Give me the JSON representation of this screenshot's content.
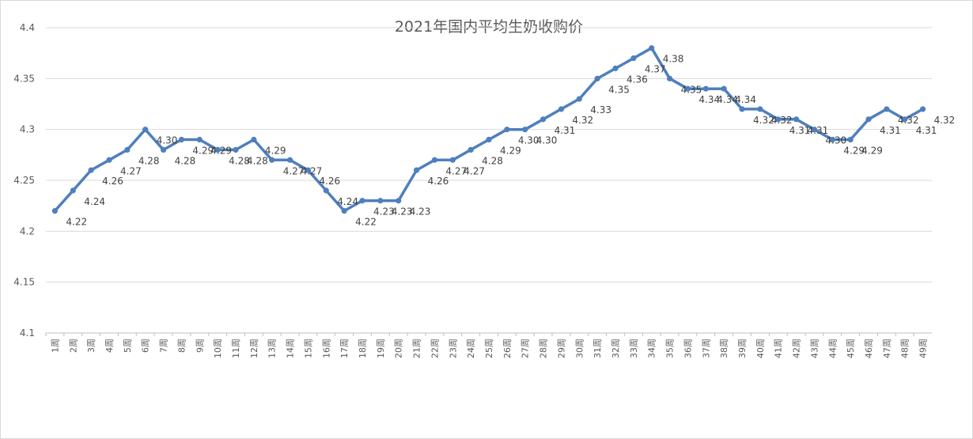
{
  "chart_data": {
    "type": "line",
    "title": "2021年国内平均生奶收购价",
    "xlabel": "",
    "ylabel": "",
    "ylim": [
      4.1,
      4.4
    ],
    "yticks": [
      "4.1",
      "4.15",
      "4.2",
      "4.25",
      "4.3",
      "4.35",
      "4.4"
    ],
    "grid": true,
    "legend": "none",
    "line_color": "#4f7fbd",
    "categories": [
      "1周",
      "2周",
      "3周",
      "4周",
      "5周",
      "6周",
      "7周",
      "8周",
      "9周",
      "10周",
      "11周",
      "12周",
      "13周",
      "14周",
      "15周",
      "16周",
      "17周",
      "18周",
      "19周",
      "20周",
      "21周",
      "22周",
      "23周",
      "24周",
      "25周",
      "26周",
      "27周",
      "28周",
      "29周",
      "30周",
      "31周",
      "32周",
      "33周",
      "34周",
      "35周",
      "36周",
      "37周",
      "38周",
      "39周",
      "40周",
      "41周",
      "42周",
      "43周",
      "44周",
      "45周",
      "46周",
      "47周",
      "48周",
      "49周"
    ],
    "values": [
      4.22,
      4.24,
      4.26,
      4.27,
      4.28,
      4.3,
      4.28,
      4.29,
      4.29,
      4.28,
      4.28,
      4.29,
      4.27,
      4.27,
      4.26,
      4.24,
      4.22,
      4.23,
      4.23,
      4.23,
      4.26,
      4.27,
      4.27,
      4.28,
      4.29,
      4.3,
      4.3,
      4.31,
      4.32,
      4.33,
      4.35,
      4.36,
      4.37,
      4.38,
      4.35,
      4.34,
      4.34,
      4.34,
      4.32,
      4.32,
      4.31,
      4.31,
      4.3,
      4.29,
      4.29,
      4.31,
      4.32,
      4.31,
      4.32
    ],
    "data_labels": [
      "4.22",
      "4.24",
      "4.26",
      "4.27",
      "4.28",
      "4.30",
      "4.28",
      "4.29",
      "4.29",
      "4.28",
      "4.28",
      "4.29",
      "4.27",
      "4.27",
      "4.26",
      "4.24",
      "4.22",
      "4.23",
      "4.23",
      "4.23",
      "4.26",
      "4.27",
      "4.27",
      "4.28",
      "4.29",
      "4.30",
      "4.30",
      "4.31",
      "4.32",
      "4.33",
      "4.35",
      "4.36",
      "4.37",
      "4.38",
      "4.35",
      "4.34",
      "4.34",
      "4.34",
      "4.32",
      "4.32",
      "4.31",
      "4.31",
      "4.30",
      "4.29",
      "4.29",
      "4.31",
      "4.32",
      "4.31",
      "4.32"
    ]
  }
}
